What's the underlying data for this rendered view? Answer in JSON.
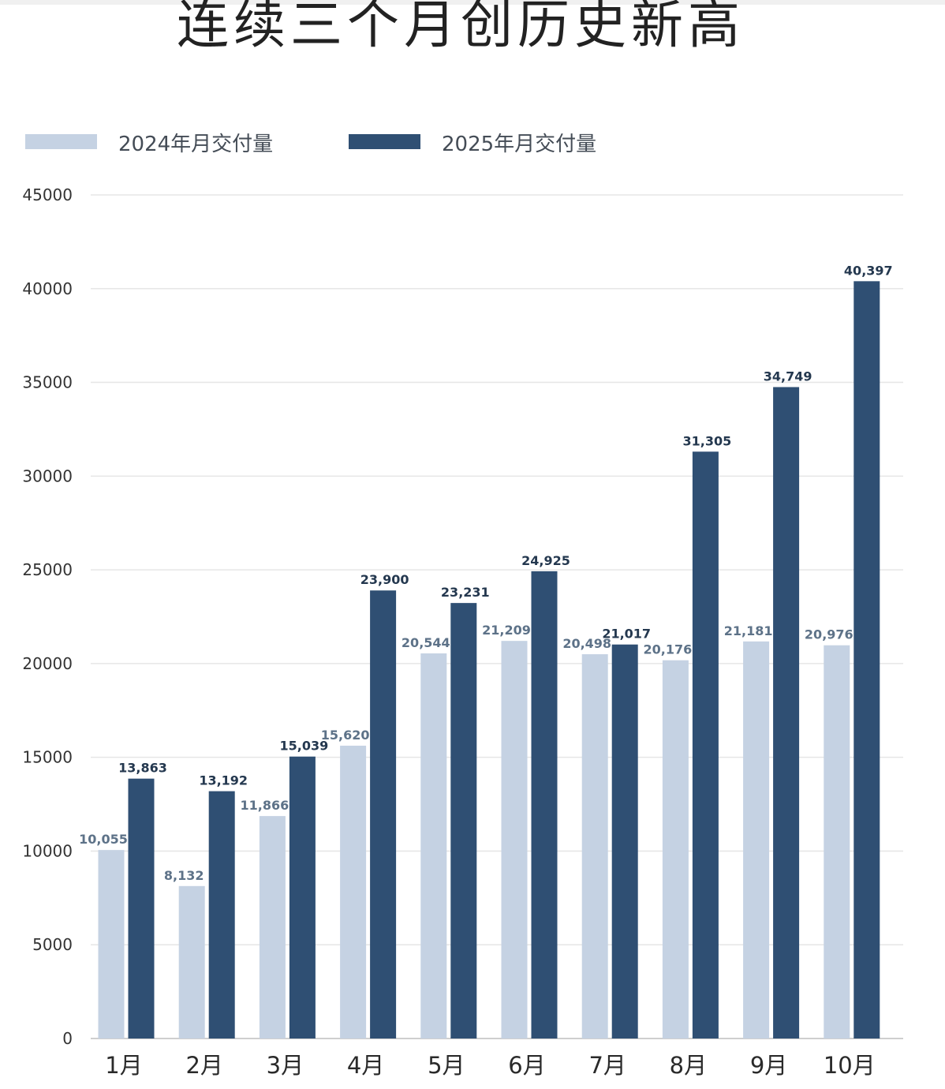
{
  "page": {
    "title": "连续三个月创历史新高"
  },
  "legend": {
    "items": [
      {
        "label": "2024年月交付量",
        "color": "#c5d2e3"
      },
      {
        "label": "2025年月交付量",
        "color": "#2f4f73"
      }
    ]
  },
  "colors": {
    "series_2024": "#c5d2e3",
    "series_2025": "#2f4f73",
    "label_2024": "#5d7288",
    "label_2025": "#24384f",
    "grid": "#e6e6e6"
  },
  "chart_data": {
    "type": "bar",
    "title": "连续三个月创历史新高",
    "categories": [
      "1月",
      "2月",
      "3月",
      "4月",
      "5月",
      "6月",
      "7月",
      "8月",
      "9月",
      "10月"
    ],
    "series": [
      {
        "name": "2024年月交付量",
        "values": [
          10055,
          8132,
          11866,
          15620,
          20544,
          21209,
          20498,
          20176,
          21181,
          20976
        ],
        "labels": [
          "10,055",
          "8,132",
          "11,866",
          "15,620",
          "20,544",
          "21,209",
          "20,498",
          "20,176",
          "21,181",
          "20,976"
        ]
      },
      {
        "name": "2025年月交付量",
        "values": [
          13863,
          13192,
          15039,
          23900,
          23231,
          24925,
          21017,
          31305,
          34749,
          40397
        ],
        "labels": [
          "13,863",
          "13,192",
          "15,039",
          "23,900",
          "23,231",
          "24,925",
          "21,017",
          "31,305",
          "34,749",
          "40,397"
        ]
      }
    ],
    "ylim": [
      0,
      45000
    ],
    "yticks": [
      0,
      5000,
      10000,
      15000,
      20000,
      25000,
      30000,
      35000,
      40000,
      45000
    ],
    "grid": true,
    "legend_position": "top-left",
    "xlabel": "",
    "ylabel": ""
  }
}
